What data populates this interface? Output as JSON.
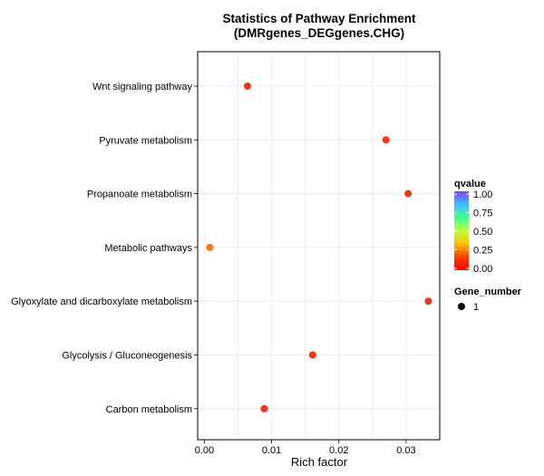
{
  "chart_data": {
    "type": "scatter",
    "title": [
      "Statistics of Pathway Enrichment",
      "(DMRgenes_DEGgenes.CHG)"
    ],
    "xlabel": "Rich factor",
    "ylabel": "",
    "xlim": [
      -0.001,
      0.035
    ],
    "x_ticks": [
      0.0,
      0.01,
      0.02,
      0.03
    ],
    "x_tick_labels": [
      "0.00",
      "0.01",
      "0.02",
      "0.03"
    ],
    "grid": true,
    "categories": [
      "Wnt signaling pathway",
      "Pyruvate metabolism",
      "Propanoate metabolism",
      "Metabolic pathways",
      "Glyoxylate and dicarboxylate metabolism",
      "Glycolysis / Gluconeogenesis",
      "Carbon metabolism"
    ],
    "points": [
      {
        "category": "Wnt signaling pathway",
        "x": 0.0064,
        "qvalue": 0.05,
        "gene_number": 1
      },
      {
        "category": "Pyruvate metabolism",
        "x": 0.027,
        "qvalue": 0.05,
        "gene_number": 1
      },
      {
        "category": "Propanoate metabolism",
        "x": 0.0303,
        "qvalue": 0.05,
        "gene_number": 1
      },
      {
        "category": "Metabolic pathways",
        "x": 0.0008,
        "qvalue": 0.15,
        "gene_number": 1
      },
      {
        "category": "Glyoxylate and dicarboxylate metabolism",
        "x": 0.0333,
        "qvalue": 0.05,
        "gene_number": 1
      },
      {
        "category": "Glycolysis / Gluconeogenesis",
        "x": 0.0161,
        "qvalue": 0.05,
        "gene_number": 1
      },
      {
        "category": "Carbon metabolism",
        "x": 0.0089,
        "qvalue": 0.05,
        "gene_number": 1
      }
    ],
    "legend": {
      "placement": "right",
      "color_title": "qvalue",
      "color_ticks": [
        "1.00",
        "0.75",
        "0.50",
        "0.25",
        "0.00"
      ],
      "size_title": "Gene_number",
      "size_labels": [
        "1"
      ]
    }
  },
  "colors": {
    "point_low_q": "#f2341a",
    "point_mid_q": "#f07a17",
    "gradient": [
      "#7f3fff",
      "#3fbfff",
      "#3fff8f",
      "#bfff3f",
      "#ffbf00",
      "#ff3f00",
      "#ff0000"
    ]
  }
}
